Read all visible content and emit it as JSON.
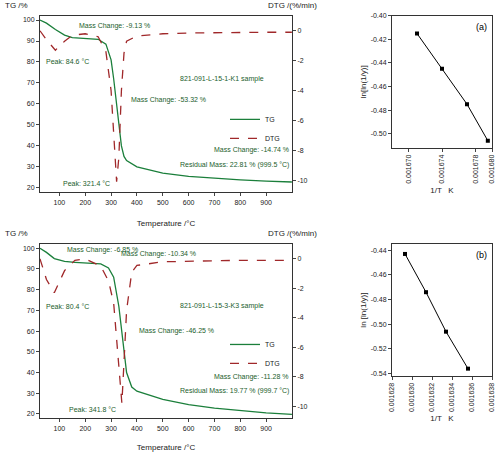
{
  "chart_data": [
    {
      "type": "line",
      "x_label": "Temperature /°C",
      "y_label": "TG /%",
      "y2_label": "DTG /(%/min)",
      "annotations": [
        "821-091-L-15-1-K1 sample",
        "Mass Change: -9.13 %",
        "Peak: 84.6 °C",
        "Mass Change: -53.32 %",
        "Peak: 321.4 °C",
        "Mass Change: -14.74 %",
        "Residual Mass: 22.81 % (999.5 °C)"
      ],
      "x": [
        25,
        50,
        84.6,
        120,
        150,
        200,
        250,
        280,
        300,
        310,
        321.4,
        330,
        340,
        350,
        360,
        400,
        500,
        600,
        700,
        800,
        900,
        999.5
      ],
      "series": [
        {
          "name": "TG",
          "color": "#1b7f3b",
          "line_style": "solid",
          "values": [
            100,
            98.5,
            95.5,
            92.8,
            91.6,
            91.1,
            90.8,
            88.5,
            81,
            72,
            60,
            50,
            40,
            35,
            33,
            30,
            27,
            25.5,
            24.5,
            23.8,
            23.2,
            22.81
          ]
        },
        {
          "name": "DTG",
          "axis": "y2",
          "color": "#a0282a",
          "line_style": "dashed",
          "values": [
            0,
            -0.6,
            -1.3,
            -0.7,
            -0.3,
            -0.2,
            -0.4,
            -1.4,
            -4,
            -7,
            -10.1,
            -8.5,
            -4,
            -1.5,
            -0.7,
            -0.35,
            -0.2,
            -0.15,
            -0.12,
            -0.1,
            -0.1,
            -0.1
          ]
        }
      ],
      "xlim": [
        25,
        1000
      ],
      "xticks": [
        100,
        200,
        300,
        400,
        500,
        600,
        700,
        800,
        900
      ],
      "ylim": [
        18,
        102
      ],
      "yticks": [
        20,
        30,
        40,
        50,
        60,
        70,
        80,
        90,
        100
      ],
      "y2lim": [
        -10.8,
        1
      ],
      "y2ticks": [
        0,
        -2,
        -4,
        -6,
        -8,
        -10
      ],
      "grid": false,
      "legend": "center"
    },
    {
      "type": "line",
      "x_label": "1/T   K",
      "y_label": "ln[ln(1/y)]",
      "annotations": [
        "(a)"
      ],
      "x": [
        0.001671,
        0.001674,
        0.001677,
        0.0016795
      ],
      "series": [
        {
          "name": "ln[ln(1/y)]",
          "color": "#000000",
          "line_style": "solid",
          "marker": "square",
          "values": [
            -0.415,
            -0.445,
            -0.475,
            -0.506
          ]
        }
      ],
      "xlim": [
        0.001668,
        0.00168
      ],
      "xticks": [
        {
          "value": 0.00167,
          "label": "0.001670"
        },
        {
          "value": 0.001674,
          "label": "0.001674"
        },
        {
          "value": 0.001678,
          "label": "0.001678"
        },
        {
          "value": 0.00168,
          "label": "0.001680"
        }
      ],
      "ylim": [
        -0.512,
        -0.4
      ],
      "yticks": [
        {
          "value": -0.4,
          "label": "-0.40"
        },
        {
          "value": -0.42,
          "label": "-0.42"
        },
        {
          "value": -0.44,
          "label": "-0.44"
        },
        {
          "value": -0.46,
          "label": "-0.46"
        },
        {
          "value": -0.48,
          "label": "-0.48"
        },
        {
          "value": -0.5,
          "label": "-0.50"
        }
      ],
      "grid": false
    },
    {
      "type": "line",
      "x_label": "Temperature /°C",
      "y_label": "TG /%",
      "y2_label": "DTG /(%/min)",
      "annotations": [
        "821-091-L-15-3-K3 sample",
        "Mass Change: -6.85 %",
        "Peak: 80.4 °C",
        "Mass Change: -10.34 %",
        "Peak: 341.8 °C",
        "Mass Change: -46.25 %",
        "Mass Change: -11.28 %",
        "Residual Mass: 19.77 % (999.7 °C)"
      ],
      "x": [
        25,
        50,
        80.4,
        120,
        160,
        200,
        260,
        290,
        310,
        330,
        341.8,
        350,
        360,
        380,
        400,
        500,
        600,
        700,
        800,
        900,
        999.7
      ],
      "series": [
        {
          "name": "TG",
          "color": "#1b7f3b",
          "line_style": "solid",
          "values": [
            100,
            98,
            95,
            93.6,
            93.2,
            92.9,
            92.4,
            90.5,
            86,
            72,
            60,
            50,
            40,
            33,
            31,
            27,
            24.5,
            22.8,
            21.5,
            20.5,
            19.77
          ]
        },
        {
          "name": "DTG",
          "axis": "y2",
          "color": "#a0282a",
          "line_style": "dashed",
          "values": [
            0,
            -1.4,
            -2.3,
            -0.8,
            -0.1,
            0,
            -0.5,
            -1.5,
            -3,
            -7,
            -9.8,
            -7,
            -3.5,
            -0.9,
            -0.45,
            -0.2,
            -0.15,
            -0.12,
            -0.1,
            -0.1,
            -0.1
          ]
        }
      ],
      "xlim": [
        25,
        1000
      ],
      "xticks": [
        100,
        200,
        300,
        400,
        500,
        600,
        700,
        800,
        900
      ],
      "ylim": [
        18,
        102
      ],
      "yticks": [
        20,
        30,
        40,
        50,
        60,
        70,
        80,
        90,
        100
      ],
      "y2lim": [
        -10.8,
        1
      ],
      "y2ticks": [
        0,
        -2,
        -4,
        -6,
        -8,
        -10
      ],
      "grid": false,
      "legend": "center"
    },
    {
      "type": "line",
      "x_label": "1/T   K",
      "y_label": "ln [ln(1/y)]",
      "annotations": [
        "(b)"
      ],
      "x": [
        0.0016293,
        0.0016314,
        0.0016334,
        0.0016356
      ],
      "series": [
        {
          "name": "ln [ln(1/y)]",
          "color": "#000000",
          "line_style": "solid",
          "marker": "square",
          "values": [
            -0.443,
            -0.474,
            -0.506,
            -0.536
          ]
        }
      ],
      "xlim": [
        0.001628,
        0.001638
      ],
      "xticks": [
        {
          "value": 0.001628,
          "label": "0.001628"
        },
        {
          "value": 0.00163,
          "label": "0.001630"
        },
        {
          "value": 0.001632,
          "label": "0.001632"
        },
        {
          "value": 0.001634,
          "label": "0.001634"
        },
        {
          "value": 0.001636,
          "label": "0.001636"
        },
        {
          "value": 0.001638,
          "label": "0.001638"
        }
      ],
      "ylim": [
        -0.542,
        -0.435
      ],
      "yticks": [
        {
          "value": -0.44,
          "label": "-0.44"
        },
        {
          "value": -0.46,
          "label": "-0.46"
        },
        {
          "value": -0.48,
          "label": "-0.48"
        },
        {
          "value": -0.5,
          "label": "-0.50"
        },
        {
          "value": -0.52,
          "label": "-0.52"
        },
        {
          "value": -0.54,
          "label": "-0.54"
        }
      ],
      "grid": false
    }
  ]
}
